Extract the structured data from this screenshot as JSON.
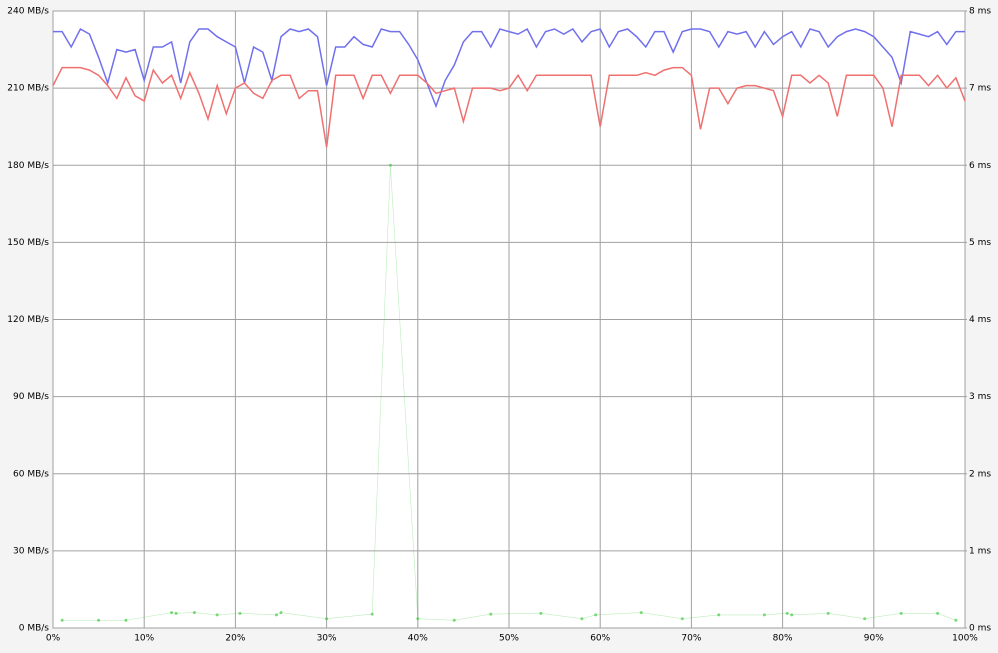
{
  "chart_data": {
    "type": "line",
    "x": [
      0,
      1,
      2,
      3,
      4,
      5,
      6,
      7,
      8,
      9,
      10,
      11,
      12,
      13,
      14,
      15,
      16,
      17,
      18,
      19,
      20,
      21,
      22,
      23,
      24,
      25,
      26,
      27,
      28,
      29,
      30,
      31,
      32,
      33,
      34,
      35,
      36,
      37,
      38,
      39,
      40,
      41,
      42,
      43,
      44,
      45,
      46,
      47,
      48,
      49,
      50,
      51,
      52,
      53,
      54,
      55,
      56,
      57,
      58,
      59,
      60,
      61,
      62,
      63,
      64,
      65,
      66,
      67,
      68,
      69,
      70,
      71,
      72,
      73,
      74,
      75,
      76,
      77,
      78,
      79,
      80,
      81,
      82,
      83,
      84,
      85,
      86,
      87,
      88,
      89,
      90,
      91,
      92,
      93,
      94,
      95,
      96,
      97,
      98,
      99,
      100
    ],
    "xlim": [
      0,
      100
    ],
    "xticks": [
      {
        "value": 0,
        "label": "0%"
      },
      {
        "value": 10,
        "label": "10%"
      },
      {
        "value": 20,
        "label": "20%"
      },
      {
        "value": 30,
        "label": "30%"
      },
      {
        "value": 40,
        "label": "40%"
      },
      {
        "value": 50,
        "label": "50%"
      },
      {
        "value": 60,
        "label": "60%"
      },
      {
        "value": 70,
        "label": "70%"
      },
      {
        "value": 80,
        "label": "80%"
      },
      {
        "value": 90,
        "label": "90%"
      },
      {
        "value": 100,
        "label": "100%"
      }
    ],
    "ylim": [
      0,
      240
    ],
    "yticks": [
      {
        "value": 0,
        "label": "0 MB/s"
      },
      {
        "value": 30,
        "label": "30 MB/s"
      },
      {
        "value": 60,
        "label": "60 MB/s"
      },
      {
        "value": 90,
        "label": "90 MB/s"
      },
      {
        "value": 120,
        "label": "120 MB/s"
      },
      {
        "value": 150,
        "label": "150 MB/s"
      },
      {
        "value": 180,
        "label": "180 MB/s"
      },
      {
        "value": 210,
        "label": "210 MB/s"
      },
      {
        "value": 240,
        "label": "240 MB/s"
      }
    ],
    "y2lim": [
      0,
      8
    ],
    "y2ticks": [
      {
        "value": 0,
        "label": "0 ms"
      },
      {
        "value": 1,
        "label": "1 ms"
      },
      {
        "value": 2,
        "label": "2 ms"
      },
      {
        "value": 3,
        "label": "3 ms"
      },
      {
        "value": 4,
        "label": "4 ms"
      },
      {
        "value": 5,
        "label": "5 ms"
      },
      {
        "value": 6,
        "label": "6 ms"
      },
      {
        "value": 7,
        "label": "7 ms"
      },
      {
        "value": 8,
        "label": "8 ms"
      }
    ],
    "grid": true,
    "series": [
      {
        "color": "#7070ee",
        "values": [
          232,
          232,
          226,
          233,
          231,
          222,
          212,
          225,
          224,
          225,
          213,
          226,
          226,
          228,
          212,
          228,
          233,
          233,
          230,
          228,
          226,
          212,
          226,
          224,
          213,
          230,
          233,
          232,
          233,
          230,
          211,
          226,
          226,
          230,
          227,
          226,
          233,
          232,
          232,
          227,
          221,
          212,
          203,
          213,
          219,
          228,
          232,
          232,
          226,
          233,
          232,
          231,
          233,
          226,
          232,
          233,
          231,
          233,
          228,
          232,
          233,
          226,
          232,
          233,
          230,
          226,
          232,
          232,
          224,
          232,
          233,
          233,
          232,
          226,
          232,
          231,
          232,
          226,
          232,
          227,
          230,
          232,
          226,
          233,
          232,
          226,
          230,
          232,
          233,
          232,
          230,
          226,
          222,
          212,
          232,
          231,
          230,
          232,
          227,
          232,
          232
        ]
      },
      {
        "color": "#f07070",
        "values": [
          211,
          218,
          218,
          218,
          217,
          215,
          211,
          206,
          214,
          207,
          205,
          217,
          212,
          215,
          206,
          216,
          208,
          198,
          211,
          200,
          210,
          212,
          208,
          206,
          213,
          215,
          215,
          206,
          209,
          209,
          187,
          215,
          215,
          215,
          206,
          215,
          215,
          208,
          215,
          215,
          215,
          212,
          208,
          209,
          210,
          197,
          210,
          210,
          210,
          209,
          210,
          215,
          209,
          215,
          215,
          215,
          215,
          215,
          215,
          215,
          195,
          215,
          215,
          215,
          215,
          216,
          215,
          217,
          218,
          218,
          215,
          194,
          210,
          210,
          204,
          210,
          211,
          211,
          210,
          209,
          199,
          215,
          215,
          212,
          215,
          212,
          199,
          215,
          215,
          215,
          215,
          210,
          195,
          215,
          215,
          215,
          211,
          215,
          210,
          214,
          205
        ]
      },
      {
        "color": "#44cc44",
        "axis": "y2",
        "x": [
          1,
          5,
          8,
          13,
          13.5,
          15.5,
          18,
          20.5,
          24.5,
          25,
          30,
          35,
          37,
          40,
          44,
          48,
          53.5,
          58,
          59.5,
          64.5,
          69,
          73,
          78,
          80.5,
          81,
          85,
          89,
          93,
          97,
          99
        ],
        "values": [
          0.1,
          0.1,
          0.1,
          0.2,
          0.19,
          0.2,
          0.17,
          0.19,
          0.17,
          0.2,
          0.12,
          0.18,
          6,
          0.12,
          0.1,
          0.18,
          0.19,
          0.12,
          0.17,
          0.2,
          0.12,
          0.17,
          0.17,
          0.19,
          0.17,
          0.19,
          0.12,
          0.19,
          0.19,
          0.1
        ]
      }
    ]
  }
}
